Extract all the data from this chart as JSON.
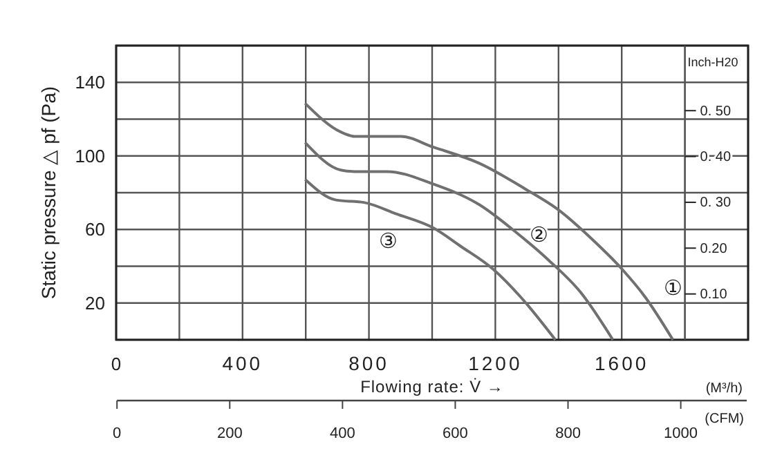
{
  "chart_data": {
    "type": "line",
    "ylabel": "Static pressure △ pf (Pa)",
    "xlabel": "Flowing rate: V̇ →",
    "x2label": "(CFM)",
    "y2label": "Inch-H20",
    "xlim": [
      0,
      2000
    ],
    "xticks": [
      0,
      400,
      800,
      1200,
      1600
    ],
    "ylim": [
      0,
      160
    ],
    "yticks": [
      {
        "value": 0,
        "label": null
      },
      20,
      {
        "value": 40,
        "label": null
      },
      60,
      {
        "value": 80,
        "label": null
      },
      100,
      {
        "value": 120,
        "label": null
      },
      140,
      {
        "value": 160,
        "label": null
      }
    ],
    "y2lim": [
      0,
      0.642
    ],
    "y2ticks": [
      {
        "value": 0.1,
        "label": "0.10"
      },
      {
        "value": 0.2,
        "label": "0.20"
      },
      {
        "value": 0.3,
        "label": "0. 30"
      },
      {
        "value": 0.4,
        "label": "0. 40"
      },
      {
        "value": 0.5,
        "label": "0. 50"
      }
    ],
    "x2lim": [
      0,
      1117
    ],
    "x2ticks": [
      0,
      200,
      400,
      600,
      800,
      1000
    ],
    "grid": true,
    "legend": false,
    "marker": "none",
    "line_style": "solid",
    "series": [
      {
        "name": "①",
        "color": "#707070",
        "x": [
          598,
          711,
          755,
          901,
          1003,
          1149,
          1295,
          1397,
          1514,
          1601,
          1674,
          1762
        ],
        "values": [
          128.6,
          113,
          110.6,
          110.6,
          104.8,
          96,
          82,
          71,
          53.4,
          38.4,
          23.3,
          0
        ]
      },
      {
        "name": "②",
        "color": "#707070",
        "x": [
          598,
          711,
          755,
          857,
          1003,
          1149,
          1266,
          1368,
          1470,
          1572
        ],
        "values": [
          107.3,
          92.3,
          91.5,
          91.5,
          84.7,
          73.5,
          58.4,
          43.4,
          25.8,
          0
        ]
      },
      {
        "name": "③",
        "color": "#707070",
        "x": [
          598,
          696,
          784,
          886,
          1003,
          1090,
          1193,
          1280,
          1390
        ],
        "values": [
          87.2,
          76,
          74.7,
          68.5,
          60.9,
          50.9,
          38.4,
          23.3,
          0
        ]
      }
    ],
    "annotations": [
      "(M³/h)"
    ]
  }
}
